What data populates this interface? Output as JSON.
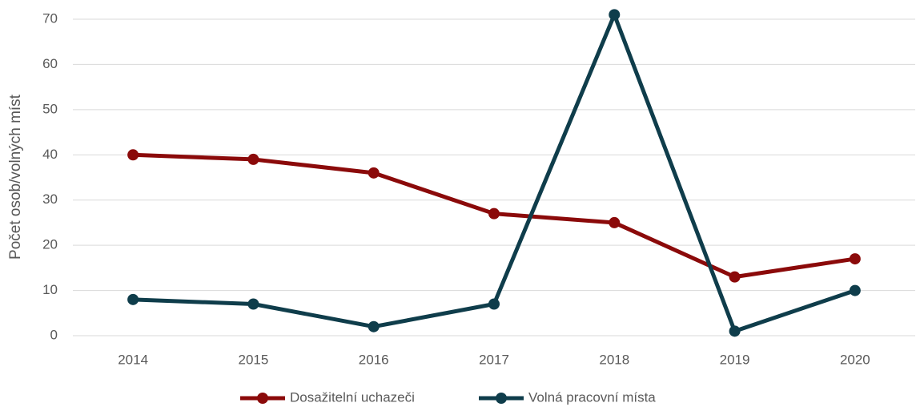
{
  "chart_data": {
    "type": "line",
    "categories": [
      "2014",
      "2015",
      "2016",
      "2017",
      "2018",
      "2019",
      "2020"
    ],
    "series": [
      {
        "name": "Dosažitelní uchazeči",
        "color": "#8b0a0a",
        "values": [
          40,
          39,
          36,
          27,
          25,
          13,
          17
        ]
      },
      {
        "name": "Volná pracovní místa",
        "color": "#0f3d4b",
        "values": [
          8,
          7,
          2,
          7,
          71,
          1,
          10
        ]
      }
    ],
    "y_axis_label": "Počet osob/volných míst",
    "ylim": [
      0,
      70
    ],
    "yticks": [
      0,
      10,
      20,
      30,
      40,
      50,
      60,
      70
    ],
    "grid": true,
    "legend": "bottom"
  }
}
